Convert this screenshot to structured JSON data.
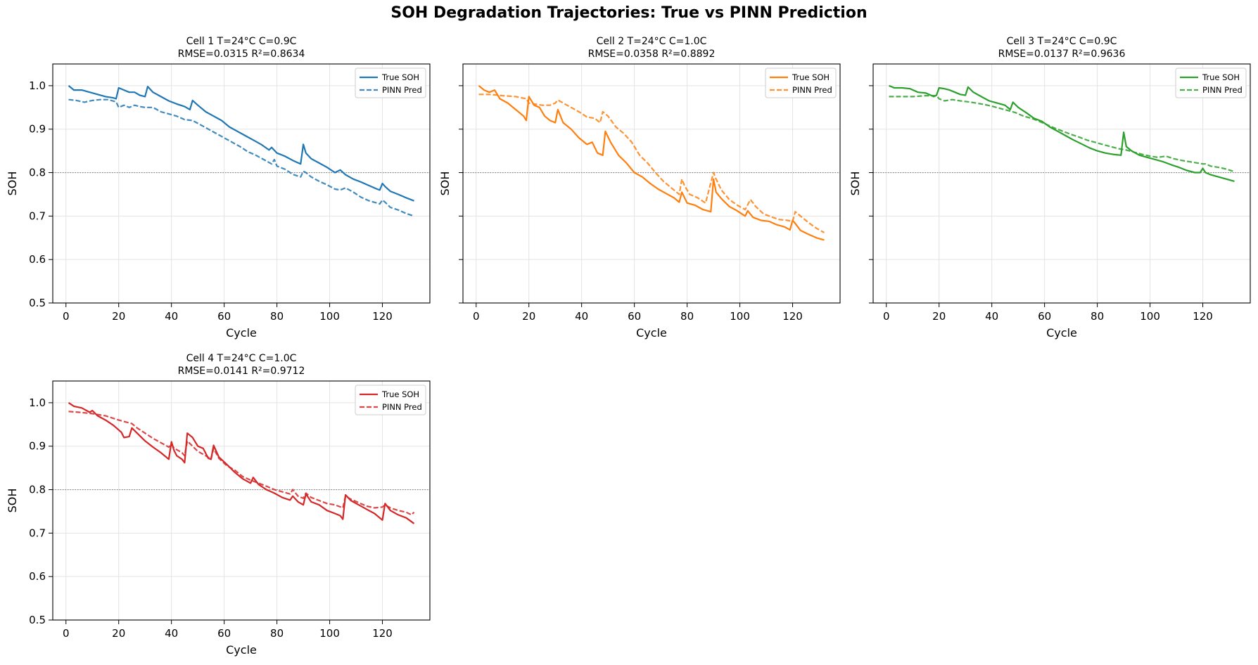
{
  "figure_title": "SOH Degradation Trajectories: True vs PINN Prediction",
  "chart_data": [
    {
      "type": "line",
      "title": "Cell 1  T=24°C  C=0.9C",
      "subtitle": "RMSE=0.0315  R²=0.8634",
      "xlabel": "Cycle",
      "ylabel": "SOH",
      "xlim": [
        -5,
        138
      ],
      "ylim": [
        0.5,
        1.05
      ],
      "xticks": [
        0,
        20,
        40,
        60,
        80,
        100,
        120
      ],
      "yticks": [
        0.5,
        0.6,
        0.7,
        0.8,
        0.9,
        1.0
      ],
      "ytick_labels_visible": true,
      "threshold": 0.8,
      "grid": true,
      "legend": "top-right",
      "color": "#1f77b4",
      "series": [
        {
          "name": "True SOH",
          "style": "solid",
          "x": [
            1,
            3,
            6,
            9,
            12,
            15,
            18,
            19,
            20,
            22,
            24,
            26,
            28,
            30,
            31,
            33,
            36,
            39,
            42,
            45,
            47,
            48,
            50,
            53,
            56,
            59,
            62,
            65,
            68,
            71,
            74,
            77,
            78,
            80,
            83,
            86,
            89,
            90,
            91,
            93,
            96,
            99,
            102,
            104,
            106,
            109,
            112,
            115,
            118,
            119,
            120,
            121,
            123,
            126,
            129,
            132
          ],
          "y": [
            1.0,
            0.99,
            0.99,
            0.985,
            0.98,
            0.975,
            0.972,
            0.97,
            0.995,
            0.99,
            0.985,
            0.985,
            0.978,
            0.975,
            0.998,
            0.985,
            0.975,
            0.965,
            0.958,
            0.952,
            0.945,
            0.966,
            0.955,
            0.94,
            0.93,
            0.92,
            0.905,
            0.895,
            0.885,
            0.875,
            0.865,
            0.852,
            0.858,
            0.845,
            0.838,
            0.828,
            0.82,
            0.865,
            0.845,
            0.832,
            0.822,
            0.812,
            0.8,
            0.806,
            0.795,
            0.785,
            0.778,
            0.77,
            0.762,
            0.76,
            0.775,
            0.768,
            0.757,
            0.75,
            0.742,
            0.735
          ]
        },
        {
          "name": "PINN Pred",
          "style": "dashed",
          "x": [
            1,
            4,
            7,
            10,
            13,
            16,
            19,
            20,
            22,
            24,
            26,
            28,
            30,
            33,
            36,
            39,
            42,
            45,
            48,
            51,
            54,
            57,
            60,
            63,
            66,
            69,
            72,
            75,
            78,
            79,
            80,
            83,
            86,
            89,
            90,
            91,
            93,
            96,
            99,
            102,
            104,
            106,
            109,
            112,
            115,
            118,
            119,
            120,
            121,
            123,
            126,
            129,
            132
          ],
          "y": [
            0.968,
            0.966,
            0.962,
            0.966,
            0.968,
            0.968,
            0.963,
            0.95,
            0.955,
            0.95,
            0.955,
            0.952,
            0.95,
            0.95,
            0.94,
            0.935,
            0.93,
            0.922,
            0.92,
            0.91,
            0.9,
            0.89,
            0.88,
            0.87,
            0.86,
            0.848,
            0.84,
            0.83,
            0.82,
            0.83,
            0.815,
            0.808,
            0.796,
            0.79,
            0.803,
            0.8,
            0.79,
            0.78,
            0.772,
            0.762,
            0.76,
            0.765,
            0.755,
            0.743,
            0.735,
            0.73,
            0.728,
            0.737,
            0.732,
            0.72,
            0.714,
            0.706,
            0.7
          ]
        }
      ]
    },
    {
      "type": "line",
      "title": "Cell 2  T=24°C  C=1.0C",
      "subtitle": "RMSE=0.0358  R²=0.8892",
      "xlabel": "Cycle",
      "ylabel": "SOH",
      "xlim": [
        -5,
        138
      ],
      "ylim": [
        0.5,
        1.05
      ],
      "xticks": [
        0,
        20,
        40,
        60,
        80,
        100,
        120
      ],
      "yticks": [
        0.5,
        0.6,
        0.7,
        0.8,
        0.9,
        1.0
      ],
      "ytick_labels_visible": false,
      "threshold": 0.8,
      "grid": true,
      "legend": "top-right",
      "color": "#ff7f0e",
      "series": [
        {
          "name": "True SOH",
          "style": "solid",
          "x": [
            1,
            3,
            5,
            7,
            9,
            12,
            15,
            18,
            19,
            20,
            22,
            24,
            26,
            28,
            30,
            31,
            33,
            36,
            39,
            42,
            44,
            46,
            48,
            49,
            51,
            54,
            57,
            60,
            63,
            66,
            69,
            72,
            75,
            77,
            78,
            80,
            83,
            86,
            89,
            90,
            91,
            93,
            96,
            99,
            102,
            103,
            105,
            108,
            111,
            114,
            117,
            119,
            120,
            121,
            123,
            126,
            129,
            132
          ],
          "y": [
            1.0,
            0.99,
            0.985,
            0.99,
            0.97,
            0.96,
            0.945,
            0.93,
            0.92,
            0.975,
            0.955,
            0.95,
            0.93,
            0.92,
            0.915,
            0.945,
            0.915,
            0.9,
            0.88,
            0.865,
            0.87,
            0.845,
            0.84,
            0.895,
            0.87,
            0.84,
            0.822,
            0.8,
            0.79,
            0.775,
            0.762,
            0.752,
            0.742,
            0.732,
            0.755,
            0.73,
            0.725,
            0.715,
            0.71,
            0.785,
            0.755,
            0.74,
            0.722,
            0.712,
            0.7,
            0.712,
            0.697,
            0.69,
            0.688,
            0.68,
            0.675,
            0.668,
            0.69,
            0.683,
            0.667,
            0.658,
            0.65,
            0.645
          ]
        },
        {
          "name": "PINN Pred",
          "style": "dashed",
          "x": [
            1,
            5,
            10,
            15,
            19,
            20,
            22,
            25,
            28,
            30,
            31,
            33,
            36,
            39,
            42,
            45,
            47,
            48,
            50,
            53,
            56,
            59,
            62,
            65,
            68,
            71,
            74,
            77,
            78,
            79,
            81,
            84,
            87,
            90,
            91,
            93,
            96,
            99,
            102,
            104,
            106,
            109,
            112,
            115,
            118,
            120,
            121,
            123,
            126,
            129,
            132
          ],
          "y": [
            0.98,
            0.98,
            0.977,
            0.975,
            0.97,
            0.96,
            0.958,
            0.955,
            0.955,
            0.96,
            0.967,
            0.96,
            0.95,
            0.94,
            0.928,
            0.925,
            0.915,
            0.94,
            0.93,
            0.905,
            0.89,
            0.87,
            0.84,
            0.822,
            0.8,
            0.78,
            0.765,
            0.75,
            0.785,
            0.77,
            0.75,
            0.742,
            0.73,
            0.8,
            0.785,
            0.76,
            0.738,
            0.725,
            0.715,
            0.738,
            0.722,
            0.705,
            0.698,
            0.692,
            0.69,
            0.688,
            0.71,
            0.7,
            0.685,
            0.672,
            0.662
          ]
        }
      ]
    },
    {
      "type": "line",
      "title": "Cell 3  T=24°C  C=0.9C",
      "subtitle": "RMSE=0.0137  R²=0.9636",
      "xlabel": "Cycle",
      "ylabel": "SOH",
      "xlim": [
        -5,
        138
      ],
      "ylim": [
        0.5,
        1.05
      ],
      "xticks": [
        0,
        20,
        40,
        60,
        80,
        100,
        120
      ],
      "yticks": [
        0.5,
        0.6,
        0.7,
        0.8,
        0.9,
        1.0
      ],
      "ytick_labels_visible": false,
      "threshold": 0.8,
      "grid": true,
      "legend": "top-right",
      "color": "#2ca02c",
      "series": [
        {
          "name": "True SOH",
          "style": "solid",
          "x": [
            1,
            3,
            6,
            9,
            12,
            15,
            18,
            19,
            20,
            22,
            24,
            26,
            28,
            30,
            31,
            33,
            36,
            39,
            42,
            45,
            47,
            48,
            50,
            53,
            56,
            59,
            62,
            65,
            68,
            71,
            74,
            77,
            80,
            83,
            86,
            89,
            90,
            91,
            93,
            96,
            99,
            102,
            105,
            108,
            111,
            114,
            117,
            119,
            120,
            121,
            123,
            126,
            129,
            132
          ],
          "y": [
            1.0,
            0.995,
            0.995,
            0.993,
            0.985,
            0.983,
            0.975,
            0.978,
            0.995,
            0.993,
            0.99,
            0.985,
            0.98,
            0.978,
            0.997,
            0.985,
            0.975,
            0.965,
            0.96,
            0.955,
            0.945,
            0.962,
            0.95,
            0.938,
            0.925,
            0.918,
            0.905,
            0.895,
            0.885,
            0.875,
            0.866,
            0.857,
            0.85,
            0.845,
            0.842,
            0.84,
            0.893,
            0.86,
            0.85,
            0.84,
            0.835,
            0.83,
            0.825,
            0.818,
            0.812,
            0.805,
            0.8,
            0.8,
            0.81,
            0.8,
            0.795,
            0.79,
            0.785,
            0.78
          ]
        },
        {
          "name": "PINN Pred",
          "style": "dashed",
          "x": [
            1,
            5,
            10,
            15,
            19,
            20,
            22,
            25,
            28,
            31,
            34,
            37,
            40,
            43,
            46,
            49,
            52,
            55,
            58,
            61,
            64,
            67,
            70,
            73,
            76,
            79,
            82,
            85,
            88,
            91,
            94,
            97,
            100,
            103,
            106,
            109,
            112,
            115,
            118,
            120,
            121,
            123,
            126,
            129,
            132
          ],
          "y": [
            0.975,
            0.975,
            0.975,
            0.977,
            0.977,
            0.97,
            0.965,
            0.968,
            0.965,
            0.963,
            0.96,
            0.957,
            0.953,
            0.948,
            0.943,
            0.938,
            0.93,
            0.925,
            0.918,
            0.91,
            0.902,
            0.895,
            0.888,
            0.882,
            0.875,
            0.87,
            0.865,
            0.86,
            0.855,
            0.852,
            0.847,
            0.842,
            0.838,
            0.835,
            0.838,
            0.832,
            0.828,
            0.825,
            0.822,
            0.82,
            0.82,
            0.815,
            0.812,
            0.808,
            0.802
          ]
        }
      ]
    },
    {
      "type": "line",
      "title": "Cell 4  T=24°C  C=1.0C",
      "subtitle": "RMSE=0.0141  R²=0.9712",
      "xlabel": "Cycle",
      "ylabel": "SOH",
      "xlim": [
        -5,
        138
      ],
      "ylim": [
        0.5,
        1.05
      ],
      "xticks": [
        0,
        20,
        40,
        60,
        80,
        100,
        120
      ],
      "yticks": [
        0.5,
        0.6,
        0.7,
        0.8,
        0.9,
        1.0
      ],
      "ytick_labels_visible": true,
      "threshold": 0.8,
      "grid": true,
      "legend": "top-right",
      "color": "#d62728",
      "series": [
        {
          "name": "True SOH",
          "style": "solid",
          "x": [
            1,
            3,
            6,
            9,
            10,
            12,
            15,
            18,
            21,
            22,
            24,
            25,
            27,
            30,
            33,
            36,
            39,
            40,
            41,
            42,
            44,
            45,
            46,
            48,
            50,
            52,
            54,
            55,
            56,
            58,
            61,
            64,
            67,
            70,
            71,
            73,
            76,
            79,
            82,
            85,
            86,
            88,
            90,
            91,
            93,
            96,
            99,
            102,
            104,
            105,
            106,
            108,
            111,
            114,
            117,
            120,
            121,
            123,
            126,
            129,
            132
          ],
          "y": [
            1.0,
            0.992,
            0.988,
            0.978,
            0.982,
            0.97,
            0.96,
            0.948,
            0.932,
            0.92,
            0.922,
            0.942,
            0.93,
            0.912,
            0.898,
            0.885,
            0.87,
            0.91,
            0.89,
            0.878,
            0.87,
            0.862,
            0.93,
            0.92,
            0.9,
            0.895,
            0.872,
            0.87,
            0.902,
            0.875,
            0.858,
            0.84,
            0.825,
            0.815,
            0.828,
            0.812,
            0.8,
            0.792,
            0.782,
            0.776,
            0.785,
            0.772,
            0.765,
            0.79,
            0.772,
            0.765,
            0.752,
            0.745,
            0.74,
            0.732,
            0.788,
            0.775,
            0.765,
            0.755,
            0.745,
            0.73,
            0.768,
            0.752,
            0.742,
            0.735,
            0.722
          ]
        },
        {
          "name": "PINN Pred",
          "style": "dashed",
          "x": [
            1,
            5,
            10,
            15,
            20,
            25,
            27,
            30,
            33,
            36,
            39,
            40,
            41,
            42,
            44,
            45,
            46,
            48,
            50,
            53,
            55,
            56,
            58,
            61,
            64,
            67,
            70,
            73,
            76,
            79,
            82,
            85,
            86,
            88,
            90,
            91,
            93,
            96,
            99,
            102,
            105,
            106,
            108,
            111,
            114,
            117,
            120,
            121,
            123,
            126,
            129,
            131,
            132
          ],
          "y": [
            0.98,
            0.978,
            0.975,
            0.97,
            0.96,
            0.952,
            0.942,
            0.93,
            0.918,
            0.908,
            0.898,
            0.905,
            0.895,
            0.892,
            0.885,
            0.878,
            0.912,
            0.9,
            0.888,
            0.878,
            0.87,
            0.895,
            0.872,
            0.855,
            0.845,
            0.83,
            0.822,
            0.815,
            0.808,
            0.8,
            0.795,
            0.79,
            0.8,
            0.785,
            0.78,
            0.792,
            0.782,
            0.775,
            0.768,
            0.765,
            0.758,
            0.785,
            0.778,
            0.77,
            0.762,
            0.758,
            0.76,
            0.765,
            0.758,
            0.752,
            0.748,
            0.742,
            0.748
          ]
        }
      ]
    }
  ]
}
